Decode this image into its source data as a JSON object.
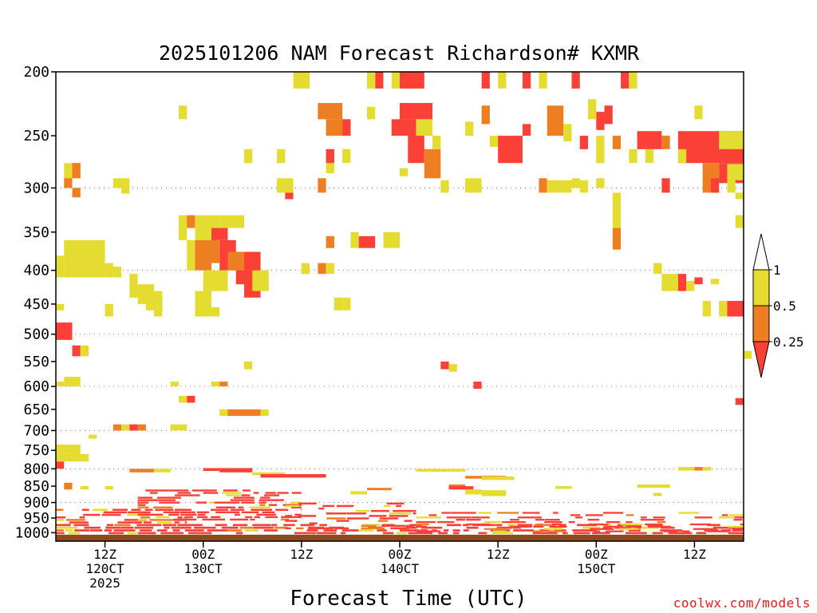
{
  "chart_data": {
    "type": "heatmap",
    "title": "2025101206 NAM Forecast Richardson# KXMR",
    "xlabel": "Forecast Time (UTC)",
    "ylabel": "",
    "y_axis": {
      "unit": "hPa",
      "inverted": true,
      "scale": "log",
      "ylim": [
        1030,
        200
      ],
      "ticks": [
        200,
        250,
        300,
        350,
        400,
        450,
        500,
        550,
        600,
        650,
        700,
        750,
        800,
        850,
        900,
        950,
        1000
      ],
      "tick_labels": [
        "200",
        "250",
        "300",
        "350",
        "400",
        "450",
        "500",
        "550",
        "600",
        "650",
        "700",
        "750",
        "800",
        "850",
        "900",
        "950",
        "1000"
      ],
      "grid_dotted_levels": [
        300,
        400,
        500,
        600,
        700,
        800,
        900
      ]
    },
    "x_axis": {
      "unit": "forecast hour",
      "xlim": [
        0,
        84
      ],
      "ticks": [
        {
          "hour": 6,
          "lines": [
            "12Z",
            "120CT",
            "2025"
          ]
        },
        {
          "hour": 18,
          "lines": [
            "00Z",
            "130CT"
          ]
        },
        {
          "hour": 30,
          "lines": [
            "12Z"
          ]
        },
        {
          "hour": 42,
          "lines": [
            "00Z",
            "140CT"
          ]
        },
        {
          "hour": 54,
          "lines": [
            "12Z"
          ]
        },
        {
          "hour": 66,
          "lines": [
            "00Z",
            "150CT"
          ]
        },
        {
          "hour": 78,
          "lines": [
            "12Z"
          ]
        }
      ]
    },
    "legend": {
      "placement": "right",
      "levels": [
        {
          "label": "1",
          "value": 1
        },
        {
          "label": "0.5",
          "value": 0.5
        },
        {
          "label": "0.25",
          "value": 0.25
        }
      ],
      "bins": [
        {
          "range": "> 1",
          "color": "#ffffff"
        },
        {
          "range": "0.5 - 1",
          "color": "#e5dc32"
        },
        {
          "range": "0.25 - 0.5",
          "color": "#ee7e22"
        },
        {
          "range": "< 0.25",
          "color": "#fb4038"
        }
      ]
    },
    "colors": {
      "yellow": "#e5dc32",
      "orange": "#ee7e22",
      "red": "#fb4038",
      "ground": "#8c4a1e"
    },
    "ground_level_hpa": 1007,
    "cells": [
      [
        29,
        31,
        200,
        212,
        "y"
      ],
      [
        39,
        40,
        200,
        212,
        "r"
      ],
      [
        38,
        39,
        200,
        212,
        "y"
      ],
      [
        42,
        45,
        200,
        212,
        "r"
      ],
      [
        41,
        42,
        200,
        212,
        "y"
      ],
      [
        52,
        53,
        200,
        212,
        "r"
      ],
      [
        54,
        55,
        200,
        212,
        "y"
      ],
      [
        57,
        58,
        200,
        212,
        "r"
      ],
      [
        59,
        60,
        200,
        212,
        "y"
      ],
      [
        63,
        64,
        200,
        212,
        "r"
      ],
      [
        69,
        70,
        200,
        212,
        "r"
      ],
      [
        70,
        71,
        200,
        212,
        "y"
      ],
      [
        32,
        35,
        223,
        236,
        "o"
      ],
      [
        33,
        36,
        236,
        250,
        "o"
      ],
      [
        35,
        36,
        236,
        250,
        "r"
      ],
      [
        42,
        46,
        223,
        236,
        "r"
      ],
      [
        41,
        44,
        236,
        250,
        "r"
      ],
      [
        44,
        46,
        236,
        250,
        "y"
      ],
      [
        43,
        45,
        250,
        275,
        "r"
      ],
      [
        45,
        47,
        262,
        290,
        "o"
      ],
      [
        46,
        47,
        250,
        262,
        "y"
      ],
      [
        38,
        39,
        226,
        236,
        "y"
      ],
      [
        52,
        53,
        225,
        240,
        "o"
      ],
      [
        50,
        51,
        238,
        250,
        "y"
      ],
      [
        53,
        54,
        250,
        260,
        "y"
      ],
      [
        54,
        57,
        250,
        275,
        "r"
      ],
      [
        57,
        58,
        240,
        250,
        "r"
      ],
      [
        60,
        62,
        225,
        250,
        "o"
      ],
      [
        62,
        63,
        240,
        255,
        "y"
      ],
      [
        66,
        67,
        230,
        245,
        "r"
      ],
      [
        65,
        66,
        220,
        236,
        "y"
      ],
      [
        67,
        68,
        225,
        240,
        "r"
      ],
      [
        64,
        65,
        250,
        262,
        "r"
      ],
      [
        66,
        67,
        250,
        275,
        "y"
      ],
      [
        68,
        69,
        250,
        262,
        "o"
      ],
      [
        71,
        74,
        246,
        262,
        "r"
      ],
      [
        74,
        75,
        250,
        262,
        "o"
      ],
      [
        76,
        84,
        246,
        275,
        "r"
      ],
      [
        81,
        84,
        246,
        262,
        "y"
      ],
      [
        78,
        79,
        225,
        236,
        "y"
      ],
      [
        74,
        75,
        290,
        305,
        "r"
      ],
      [
        76,
        77,
        262,
        275,
        "y"
      ],
      [
        70,
        71,
        262,
        275,
        "y"
      ],
      [
        72,
        73,
        262,
        275,
        "y"
      ],
      [
        15,
        16,
        225,
        236,
        "y"
      ],
      [
        27,
        28,
        262,
        275,
        "y"
      ],
      [
        23,
        24,
        262,
        275,
        "y"
      ],
      [
        35,
        36,
        262,
        275,
        "y"
      ],
      [
        33,
        34,
        262,
        285,
        "y"
      ],
      [
        42,
        43,
        280,
        288,
        "y"
      ],
      [
        47,
        48,
        292,
        305,
        "y"
      ],
      [
        50,
        52,
        290,
        305,
        "y"
      ],
      [
        59,
        60,
        290,
        305,
        "o"
      ],
      [
        60,
        61,
        292,
        305,
        "y"
      ],
      [
        61,
        63,
        292,
        305,
        "y"
      ],
      [
        63,
        64,
        290,
        300,
        "y"
      ],
      [
        64,
        65,
        292,
        305,
        "y"
      ],
      [
        66,
        67,
        290,
        300,
        "y"
      ],
      [
        79,
        81,
        275,
        305,
        "o"
      ],
      [
        80,
        81,
        290,
        305,
        "r"
      ],
      [
        81,
        84,
        275,
        295,
        "r"
      ],
      [
        82,
        84,
        276,
        292,
        "y"
      ],
      [
        82,
        83,
        290,
        305,
        "y"
      ],
      [
        83,
        84,
        305,
        312,
        "y"
      ],
      [
        1,
        3,
        275,
        290,
        "y"
      ],
      [
        1,
        2,
        290,
        300,
        "o"
      ],
      [
        2,
        3,
        275,
        290,
        "o"
      ],
      [
        2,
        3,
        300,
        310,
        "o"
      ],
      [
        7,
        9,
        290,
        300,
        "y"
      ],
      [
        8,
        9,
        300,
        306,
        "y"
      ],
      [
        27,
        29,
        290,
        305,
        "y"
      ],
      [
        28,
        29,
        305,
        312,
        "r"
      ],
      [
        32,
        33,
        290,
        305,
        "o"
      ],
      [
        15,
        16,
        330,
        360,
        "y"
      ],
      [
        16,
        17,
        330,
        345,
        "o"
      ],
      [
        17,
        20,
        330,
        360,
        "y"
      ],
      [
        20,
        23,
        330,
        345,
        "y"
      ],
      [
        19,
        21,
        345,
        360,
        "r"
      ],
      [
        20,
        22,
        360,
        400,
        "r"
      ],
      [
        19,
        20,
        360,
        390,
        "o"
      ],
      [
        22,
        25,
        375,
        420,
        "r"
      ],
      [
        21,
        23,
        375,
        400,
        "o"
      ],
      [
        23,
        25,
        400,
        440,
        "r"
      ],
      [
        24,
        26,
        400,
        430,
        "y"
      ],
      [
        16,
        17,
        360,
        400,
        "y"
      ],
      [
        17,
        19,
        360,
        400,
        "o"
      ],
      [
        18,
        21,
        400,
        430,
        "y"
      ],
      [
        17,
        19,
        430,
        470,
        "y"
      ],
      [
        19,
        20,
        455,
        470,
        "y"
      ],
      [
        1,
        6,
        360,
        410,
        "y"
      ],
      [
        2,
        4,
        380,
        395,
        "y"
      ],
      [
        6,
        7,
        390,
        410,
        "y"
      ],
      [
        7,
        8,
        395,
        410,
        "y"
      ],
      [
        9,
        10,
        405,
        440,
        "y"
      ],
      [
        10,
        12,
        420,
        450,
        "y"
      ],
      [
        11,
        13,
        430,
        460,
        "y"
      ],
      [
        12,
        13,
        450,
        470,
        "y"
      ],
      [
        6,
        7,
        450,
        470,
        "y"
      ],
      [
        0,
        1,
        450,
        460,
        "y"
      ],
      [
        0,
        1,
        380,
        410,
        "y"
      ],
      [
        33,
        34,
        262,
        275,
        "r"
      ],
      [
        33,
        34,
        355,
        370,
        "o"
      ],
      [
        32,
        33,
        390,
        405,
        "o"
      ],
      [
        30,
        31,
        390,
        405,
        "y"
      ],
      [
        33,
        34,
        390,
        405,
        "y"
      ],
      [
        36,
        37,
        350,
        370,
        "y"
      ],
      [
        37,
        39,
        355,
        370,
        "r"
      ],
      [
        40,
        42,
        350,
        370,
        "y"
      ],
      [
        34,
        35,
        440,
        460,
        "y"
      ],
      [
        35,
        36,
        440,
        460,
        "y"
      ],
      [
        68,
        69,
        335,
        345,
        "y"
      ],
      [
        68,
        69,
        345,
        372,
        "o"
      ],
      [
        73,
        74,
        390,
        405,
        "y"
      ],
      [
        74,
        76,
        405,
        430,
        "y"
      ],
      [
        76,
        77,
        405,
        430,
        "r"
      ],
      [
        77,
        78,
        415,
        430,
        "y"
      ],
      [
        78,
        79,
        410,
        420,
        "r"
      ],
      [
        79,
        80,
        445,
        470,
        "y"
      ],
      [
        81,
        82,
        445,
        470,
        "y"
      ],
      [
        80,
        81,
        412,
        420,
        "y"
      ],
      [
        82,
        84,
        445,
        470,
        "r"
      ],
      [
        83,
        84,
        330,
        345,
        "y"
      ],
      [
        68,
        69,
        305,
        335,
        "y"
      ],
      [
        0,
        2,
        480,
        510,
        "r"
      ],
      [
        2,
        3,
        520,
        540,
        "r"
      ],
      [
        3,
        4,
        520,
        540,
        "y"
      ],
      [
        84,
        85,
        530,
        545,
        "y"
      ],
      [
        47,
        48,
        550,
        565,
        "r"
      ],
      [
        48,
        49,
        555,
        570,
        "y"
      ],
      [
        51,
        52,
        590,
        605,
        "r"
      ],
      [
        23,
        24,
        550,
        565,
        "y"
      ],
      [
        1,
        3,
        580,
        600,
        "y"
      ],
      [
        0,
        1,
        590,
        600,
        "y"
      ],
      [
        14,
        15,
        590,
        600,
        "y"
      ],
      [
        19,
        20,
        590,
        600,
        "y"
      ],
      [
        20,
        21,
        590,
        600,
        "o"
      ],
      [
        15,
        16,
        620,
        635,
        "y"
      ],
      [
        16,
        17,
        620,
        635,
        "r"
      ],
      [
        20,
        21,
        650,
        665,
        "y"
      ],
      [
        21,
        25,
        650,
        665,
        "o"
      ],
      [
        25,
        26,
        650,
        665,
        "y"
      ],
      [
        7,
        8,
        685,
        700,
        "o"
      ],
      [
        8,
        9,
        685,
        700,
        "y"
      ],
      [
        9,
        10,
        685,
        700,
        "r"
      ],
      [
        10,
        11,
        685,
        700,
        "o"
      ],
      [
        14,
        16,
        685,
        700,
        "y"
      ],
      [
        4,
        5,
        710,
        720,
        "y"
      ],
      [
        0,
        3,
        735,
        760,
        "y"
      ],
      [
        0,
        4,
        760,
        780,
        "y"
      ],
      [
        0,
        1,
        780,
        800,
        "r"
      ],
      [
        83,
        84,
        625,
        640,
        "r"
      ],
      [
        9,
        12,
        800,
        810,
        "o"
      ],
      [
        12,
        14,
        800,
        810,
        "y"
      ],
      [
        18,
        20,
        798,
        806,
        "r"
      ],
      [
        20,
        24,
        798,
        810,
        "r"
      ],
      [
        24,
        28,
        810,
        818,
        "y"
      ],
      [
        25,
        33,
        815,
        825,
        "r"
      ],
      [
        44,
        50,
        800,
        808,
        "y"
      ],
      [
        50,
        55,
        820,
        828,
        "o"
      ],
      [
        52,
        56,
        822,
        832,
        "y"
      ],
      [
        48,
        50,
        845,
        855,
        "o"
      ],
      [
        48,
        51,
        850,
        860,
        "r"
      ],
      [
        50,
        52,
        860,
        875,
        "y"
      ],
      [
        52,
        55,
        862,
        880,
        "y"
      ],
      [
        61,
        63,
        850,
        858,
        "y"
      ],
      [
        71,
        75,
        845,
        855,
        "y"
      ],
      [
        76,
        78,
        795,
        805,
        "y"
      ],
      [
        78,
        79,
        795,
        805,
        "o"
      ],
      [
        79,
        80,
        795,
        805,
        "y"
      ],
      [
        73,
        74,
        870,
        880,
        "y"
      ],
      [
        38,
        41,
        855,
        862,
        "o"
      ],
      [
        36,
        38,
        865,
        875,
        "y"
      ],
      [
        1,
        2,
        840,
        860,
        "o"
      ],
      [
        3,
        4,
        850,
        860,
        "y"
      ],
      [
        6,
        7,
        850,
        860,
        "y"
      ]
    ],
    "low_level_bands": [
      {
        "hours": [
          0,
          84
        ],
        "hpa": [
          970,
          1007
        ],
        "color": "red",
        "pattern": "striped"
      },
      {
        "hours": [
          0,
          16
        ],
        "hpa": [
          920,
          970
        ],
        "color": "red",
        "pattern": "banded"
      },
      {
        "hours": [
          10,
          30
        ],
        "hpa": [
          860,
          960
        ],
        "color": "red",
        "pattern": "banded"
      },
      {
        "hours": [
          28,
          44
        ],
        "hpa": [
          900,
          990
        ],
        "color": "red",
        "pattern": "sparse"
      },
      {
        "hours": [
          44,
          84
        ],
        "hpa": [
          930,
          1000
        ],
        "color": "red",
        "pattern": "broken"
      }
    ]
  },
  "credit": "coolwx.com/models"
}
